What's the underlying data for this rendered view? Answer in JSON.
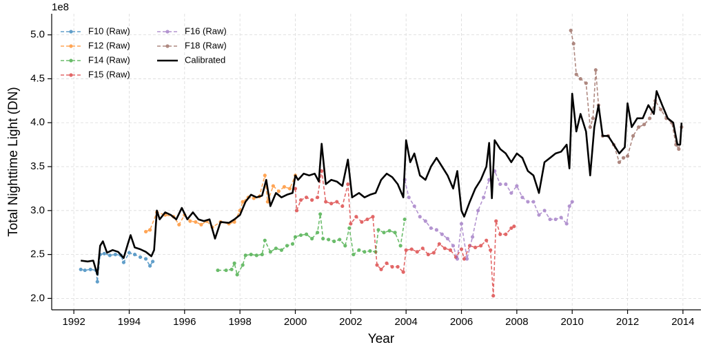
{
  "chart_data": {
    "type": "line",
    "y_offset_label": "1e8",
    "xlabel": "Year",
    "ylabel": "Total Nighttime Light (DN)",
    "xlim": [
      1991.2,
      2014.65
    ],
    "ylim": [
      1.87,
      5.24
    ],
    "xticks": [
      1992,
      1994,
      1996,
      1998,
      2000,
      2002,
      2004,
      2006,
      2008,
      2010,
      2012,
      2014
    ],
    "yticks": [
      {
        "value": 2,
        "label": "2.0"
      },
      {
        "value": 2.5,
        "label": "2.5"
      },
      {
        "value": 3,
        "label": "3.0"
      },
      {
        "value": 3.5,
        "label": "3.5"
      },
      {
        "value": 4,
        "label": "4.0"
      },
      {
        "value": 4.5,
        "label": "4.5"
      },
      {
        "value": 5,
        "label": "5.0"
      }
    ],
    "grid": true,
    "legend": "upper left",
    "series": [
      {
        "name": "F10 (Raw)",
        "color": "#1f77b4",
        "linestyle": "dashed",
        "marker": true,
        "x": [
          1992.25,
          1992.4,
          1992.6,
          1992.8,
          1992.85,
          1992.95,
          1993.1,
          1993.3,
          1993.5,
          1993.7,
          1993.8,
          1994.0,
          1994.2,
          1994.4,
          1994.6,
          1994.75,
          1994.85
        ],
        "values": [
          2.33,
          2.32,
          2.33,
          2.32,
          2.19,
          2.5,
          2.51,
          2.49,
          2.5,
          2.49,
          2.41,
          2.52,
          2.5,
          2.47,
          2.45,
          2.37,
          2.42
        ]
      },
      {
        "name": "F12 (Raw)",
        "color": "#ff7f0e",
        "linestyle": "dashed",
        "marker": true,
        "x": [
          1994.6,
          1994.75,
          1995.0,
          1995.3,
          1995.6,
          1995.8,
          1996.0,
          1996.2,
          1996.4,
          1996.6,
          1996.8,
          1997.0,
          1997.3,
          1997.6,
          1997.8,
          1998.0,
          1998.1,
          1998.3,
          1998.5,
          1998.7,
          1998.9,
          1999.0,
          1999.2,
          1999.4,
          1999.6,
          1999.8,
          2000.0
        ],
        "values": [
          2.76,
          2.78,
          2.98,
          2.95,
          2.93,
          2.84,
          2.95,
          2.88,
          2.87,
          2.84,
          2.88,
          2.81,
          2.87,
          2.85,
          2.87,
          3.0,
          3.1,
          3.15,
          3.14,
          3.16,
          3.4,
          3.1,
          3.28,
          3.22,
          3.27,
          3.25,
          3.4
        ]
      },
      {
        "name": "F14 (Raw)",
        "color": "#2ca02c",
        "linestyle": "dashed",
        "marker": true,
        "x": [
          1997.2,
          1997.5,
          1997.7,
          1997.8,
          1997.9,
          1998.1,
          1998.2,
          1998.4,
          1998.6,
          1998.8,
          1998.9,
          1999.1,
          1999.3,
          1999.5,
          1999.7,
          1999.9,
          2000.0,
          2000.2,
          2000.4,
          2000.6,
          2000.8,
          2000.9,
          2001.0,
          2001.2,
          2001.4,
          2001.6,
          2001.8,
          2001.95,
          2002.1,
          2002.3,
          2002.5,
          2002.7,
          2002.9,
          2003.0,
          2003.2,
          2003.4,
          2003.6,
          2003.8,
          2003.95
        ],
        "values": [
          2.32,
          2.32,
          2.33,
          2.4,
          2.27,
          2.38,
          2.49,
          2.5,
          2.49,
          2.5,
          2.66,
          2.53,
          2.57,
          2.55,
          2.6,
          2.62,
          2.7,
          2.72,
          2.73,
          2.68,
          2.75,
          2.96,
          2.68,
          2.67,
          2.65,
          2.67,
          2.6,
          2.8,
          2.5,
          2.55,
          2.53,
          2.54,
          2.53,
          2.78,
          2.75,
          2.77,
          2.75,
          2.6,
          2.9
        ]
      },
      {
        "name": "F15 (Raw)",
        "color": "#d62728",
        "linestyle": "dashed",
        "marker": true,
        "x": [
          2000.0,
          2000.05,
          2000.2,
          2000.4,
          2000.6,
          2000.8,
          2000.95,
          2001.1,
          2001.3,
          2001.5,
          2001.7,
          2001.9,
          2002.0,
          2002.2,
          2002.4,
          2002.6,
          2002.8,
          2002.95,
          2003.1,
          2003.3,
          2003.5,
          2003.7,
          2003.9,
          2004.0,
          2004.2,
          2004.4,
          2004.6,
          2004.8,
          2005.0,
          2005.2,
          2005.4,
          2005.6,
          2005.8,
          2006.0,
          2006.1,
          2006.3,
          2006.5,
          2006.7,
          2006.9,
          2007.05,
          2007.15,
          2007.25,
          2007.4,
          2007.6,
          2007.8,
          2007.9
        ],
        "values": [
          3.25,
          3.0,
          3.12,
          3.15,
          3.12,
          3.15,
          3.45,
          3.1,
          3.08,
          3.1,
          3.05,
          3.3,
          2.85,
          2.93,
          2.87,
          2.9,
          2.93,
          2.38,
          2.33,
          2.4,
          2.36,
          2.36,
          2.3,
          2.55,
          2.56,
          2.53,
          2.57,
          2.5,
          2.52,
          2.62,
          2.57,
          2.55,
          2.47,
          2.56,
          2.45,
          2.6,
          2.58,
          2.6,
          2.66,
          2.55,
          2.03,
          2.88,
          2.73,
          2.73,
          2.8,
          2.82
        ]
      },
      {
        "name": "F16 (Raw)",
        "color": "#9467bd",
        "linestyle": "dashed",
        "marker": true,
        "x": [
          2003.95,
          2004.1,
          2004.3,
          2004.5,
          2004.7,
          2004.9,
          2005.1,
          2005.3,
          2005.5,
          2005.7,
          2005.85,
          2006.0,
          2006.2,
          2006.4,
          2006.6,
          2006.8,
          2007.0,
          2007.2,
          2007.4,
          2007.6,
          2007.8,
          2008.0,
          2008.2,
          2008.4,
          2008.6,
          2008.8,
          2009.0,
          2009.2,
          2009.4,
          2009.6,
          2009.8,
          2009.9,
          2010.0
        ],
        "values": [
          3.35,
          3.15,
          3.05,
          2.93,
          2.88,
          2.8,
          2.78,
          2.73,
          2.68,
          2.6,
          2.45,
          2.85,
          2.45,
          2.7,
          3.0,
          3.15,
          3.35,
          3.45,
          3.3,
          3.3,
          3.2,
          3.28,
          3.15,
          3.1,
          3.1,
          2.95,
          3.0,
          2.9,
          2.9,
          2.92,
          2.85,
          3.05,
          3.1
        ]
      },
      {
        "name": "F18 (Raw)",
        "color": "#8c564b",
        "linestyle": "dashed",
        "marker": true,
        "x": [
          2009.95,
          2010.05,
          2010.15,
          2010.3,
          2010.5,
          2010.65,
          2010.75,
          2010.85,
          2010.95,
          2011.1,
          2011.3,
          2011.5,
          2011.7,
          2011.85,
          2012.0,
          2012.2,
          2012.4,
          2012.6,
          2012.8,
          2013.0,
          2013.2,
          2013.4,
          2013.6,
          2013.75,
          2013.85,
          2013.95
        ],
        "values": [
          5.05,
          4.9,
          4.55,
          4.5,
          4.45,
          3.95,
          4.05,
          4.6,
          4.2,
          3.85,
          3.85,
          3.75,
          3.55,
          3.6,
          3.62,
          3.85,
          3.95,
          3.98,
          4.05,
          4.25,
          4.15,
          4.05,
          4.0,
          3.75,
          3.7,
          3.95
        ]
      },
      {
        "name": "Calibrated",
        "color": "#000000",
        "linestyle": "solid",
        "marker": false,
        "x": [
          1992.25,
          1992.5,
          1992.7,
          1992.85,
          1992.95,
          1993.05,
          1993.2,
          1993.4,
          1993.6,
          1993.8,
          1993.95,
          1994.05,
          1994.2,
          1994.4,
          1994.6,
          1994.8,
          1994.9,
          1995.0,
          1995.1,
          1995.3,
          1995.5,
          1995.7,
          1995.9,
          1996.1,
          1996.3,
          1996.5,
          1996.7,
          1996.9,
          1997.1,
          1997.3,
          1997.6,
          1997.8,
          1998.0,
          1998.2,
          1998.4,
          1998.6,
          1998.8,
          1998.95,
          1999.1,
          1999.3,
          1999.5,
          1999.7,
          1999.9,
          2000.0,
          2000.1,
          2000.3,
          2000.5,
          2000.7,
          2000.85,
          2000.95,
          2001.1,
          2001.3,
          2001.5,
          2001.7,
          2001.9,
          2002.05,
          2002.3,
          2002.5,
          2002.7,
          2002.9,
          2003.1,
          2003.3,
          2003.5,
          2003.7,
          2003.9,
          2004.0,
          2004.15,
          2004.3,
          2004.5,
          2004.7,
          2004.9,
          2005.1,
          2005.3,
          2005.5,
          2005.7,
          2005.85,
          2006.0,
          2006.1,
          2006.3,
          2006.5,
          2006.7,
          2006.9,
          2007.0,
          2007.1,
          2007.2,
          2007.4,
          2007.6,
          2007.8,
          2008.0,
          2008.2,
          2008.4,
          2008.6,
          2008.8,
          2009.0,
          2009.2,
          2009.4,
          2009.6,
          2009.8,
          2009.9,
          2010.0,
          2010.15,
          2010.3,
          2010.5,
          2010.65,
          2010.8,
          2010.95,
          2011.1,
          2011.3,
          2011.5,
          2011.7,
          2011.9,
          2012.0,
          2012.15,
          2012.35,
          2012.55,
          2012.75,
          2012.95,
          2013.05,
          2013.25,
          2013.45,
          2013.65,
          2013.8,
          2013.9,
          2013.95
        ],
        "values": [
          2.43,
          2.42,
          2.43,
          2.27,
          2.6,
          2.65,
          2.52,
          2.55,
          2.53,
          2.46,
          2.62,
          2.72,
          2.58,
          2.56,
          2.53,
          2.48,
          2.55,
          3.0,
          2.9,
          2.98,
          2.95,
          2.9,
          3.03,
          2.9,
          2.98,
          2.9,
          2.88,
          2.9,
          2.68,
          2.87,
          2.86,
          2.9,
          2.95,
          3.1,
          3.18,
          3.15,
          3.17,
          3.35,
          3.05,
          3.2,
          3.15,
          3.18,
          3.2,
          3.4,
          3.35,
          3.42,
          3.4,
          3.42,
          3.33,
          3.76,
          3.3,
          3.35,
          3.33,
          3.28,
          3.58,
          3.15,
          3.2,
          3.15,
          3.18,
          3.2,
          3.35,
          3.42,
          3.38,
          3.3,
          3.15,
          3.8,
          3.55,
          3.65,
          3.4,
          3.35,
          3.5,
          3.6,
          3.5,
          3.4,
          3.25,
          3.45,
          3.0,
          2.93,
          3.1,
          3.25,
          3.35,
          3.5,
          3.77,
          3.14,
          3.8,
          3.7,
          3.65,
          3.55,
          3.65,
          3.6,
          3.45,
          3.4,
          3.2,
          3.55,
          3.6,
          3.65,
          3.67,
          3.75,
          3.48,
          4.33,
          3.9,
          4.1,
          3.9,
          3.4,
          3.95,
          4.2,
          3.85,
          3.85,
          3.75,
          3.65,
          3.72,
          4.22,
          3.95,
          4.05,
          4.05,
          4.2,
          4.1,
          4.36,
          4.2,
          4.05,
          4.0,
          3.75,
          3.75,
          4.0
        ]
      }
    ]
  }
}
